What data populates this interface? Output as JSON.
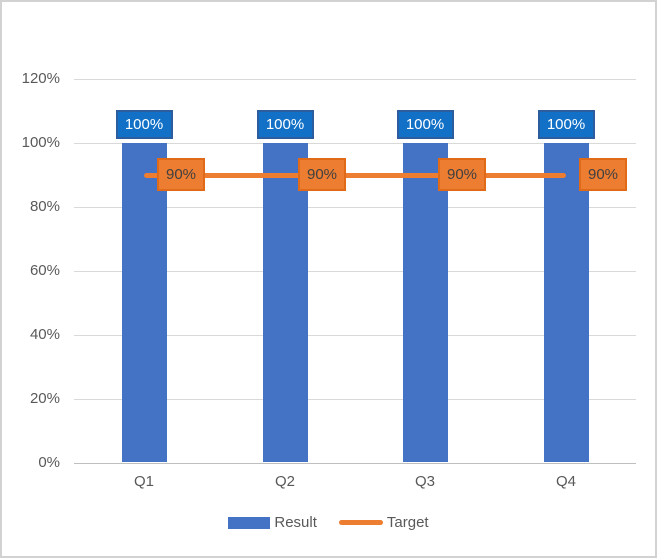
{
  "window": {
    "background": "#FFFFFF",
    "border_color": "#D2D2D2"
  },
  "chart_data": {
    "type": "combo",
    "title": "",
    "categories": [
      "Q1",
      "Q2",
      "Q3",
      "Q4"
    ],
    "series": [
      {
        "name": "Result",
        "chart_type": "bar",
        "values": [
          100,
          100,
          100,
          100
        ],
        "unit": "%",
        "data_labels": [
          "100%",
          "100%",
          "100%",
          "100%"
        ],
        "color": "#4472C4",
        "label_fill": "#1271C7",
        "label_border": "#2B5D9F",
        "label_text_color": "#FFFFFF"
      },
      {
        "name": "Target",
        "chart_type": "line",
        "values": [
          90,
          90,
          90,
          90
        ],
        "unit": "%",
        "data_labels": [
          "90%",
          "90%",
          "90%",
          "90%"
        ],
        "color": "#ED7D31",
        "label_fill": "#ED7D31",
        "label_border": "#E06A18",
        "label_text_color": "#404040"
      }
    ],
    "y_axis": {
      "min": 0,
      "max": 120,
      "step": 20,
      "tick_labels": [
        "0%",
        "20%",
        "40%",
        "60%",
        "80%",
        "100%",
        "120%"
      ],
      "unit": "%"
    },
    "x_axis": {
      "tick_labels": [
        "Q1",
        "Q2",
        "Q3",
        "Q4"
      ]
    },
    "gridlines": {
      "show": true,
      "color": "#D9D9D9",
      "axis_line_color": "#BFBFBF"
    },
    "legend": {
      "position": "bottom",
      "entries": [
        {
          "label": "Result",
          "swatch": "bar",
          "color": "#4472C4"
        },
        {
          "label": "Target",
          "swatch": "line",
          "color": "#ED7D31"
        }
      ]
    },
    "text_color": "#595959"
  }
}
